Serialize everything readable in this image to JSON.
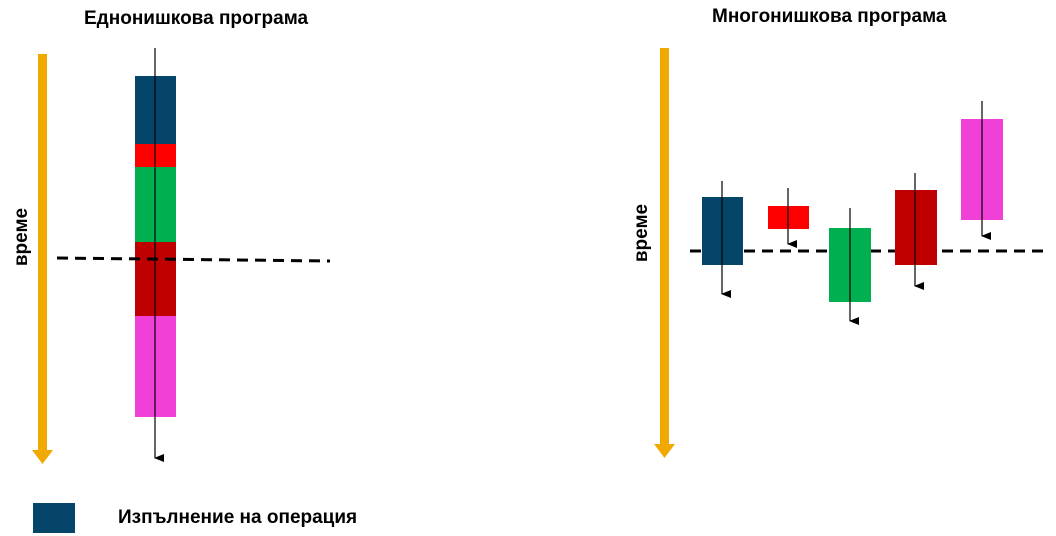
{
  "diagram": {
    "single_thread": {
      "title": "Еднонишкова програма",
      "time_label": "време"
    },
    "multi_thread": {
      "title": "Многонишкова програма",
      "time_label": "време"
    },
    "legend": {
      "label": "Изпълнение на операция",
      "color": "#05456a"
    },
    "colors": {
      "time_arrow": "#f0a900",
      "dark_blue": "#05456a",
      "red": "#ff0000",
      "green": "#00b050",
      "dark_red": "#c00000",
      "magenta": "#f040d8"
    }
  }
}
